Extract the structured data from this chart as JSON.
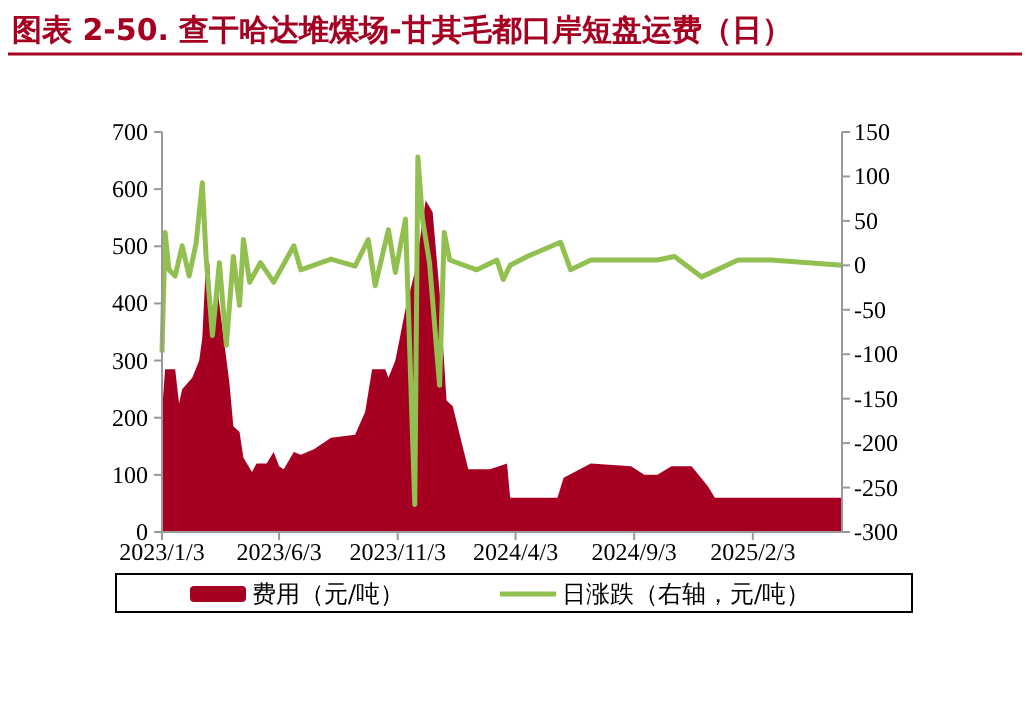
{
  "chart_data": {
    "type": "area",
    "title": "图表 2-50. 查干哈达堆煤场-甘其毛都口岸短盘运费（日）",
    "series": [
      {
        "name": "费用（元/吨）",
        "color": "#a50021",
        "x": [
          "2023-01-03",
          "2023-01-07",
          "2023-01-20",
          "2023-01-25",
          "2023-01-29",
          "2023-02-11",
          "2023-02-20",
          "2023-02-24",
          "2023-03-01",
          "2023-03-05",
          "2023-03-09",
          "2023-03-16",
          "2023-03-23",
          "2023-03-31",
          "2023-04-05",
          "2023-04-13",
          "2023-04-18",
          "2023-04-29",
          "2023-05-05",
          "2023-05-18",
          "2023-05-27",
          "2023-06-03",
          "2023-06-09",
          "2023-06-22",
          "2023-07-01",
          "2023-07-18",
          "2023-08-09",
          "2023-09-09",
          "2023-09-22",
          "2023-10-01",
          "2023-10-18",
          "2023-10-22",
          "2023-10-31",
          "2023-11-13",
          "2023-11-26",
          "2023-12-09",
          "2023-12-18",
          "2023-12-27",
          "2024-01-05",
          "2024-01-13",
          "2024-01-22",
          "2024-02-02",
          "2024-03-01",
          "2024-03-23",
          "2024-03-27",
          "2024-05-27",
          "2024-06-04",
          "2024-07-09",
          "2024-08-30",
          "2024-09-16",
          "2024-10-03",
          "2024-10-21",
          "2024-11-16",
          "2024-12-07",
          "2024-12-16",
          "2025-05-29"
        ],
        "values": [
          210,
          285,
          285,
          225,
          250,
          270,
          300,
          340,
          480,
          470,
          360,
          420,
          345,
          260,
          185,
          175,
          130,
          105,
          120,
          120,
          140,
          115,
          110,
          140,
          135,
          145,
          165,
          170,
          210,
          285,
          285,
          270,
          300,
          390,
          460,
          580,
          560,
          420,
          230,
          220,
          170,
          110,
          110,
          120,
          60,
          60,
          95,
          120,
          115,
          100,
          100,
          115,
          115,
          80,
          60,
          60
        ]
      },
      {
        "name": "日涨跌（右轴，元/吨）",
        "type": "line",
        "axis": "y2",
        "color": "#92c050",
        "x": [
          "2023-01-03",
          "2023-01-07",
          "2023-01-12",
          "2023-01-20",
          "2023-01-29",
          "2023-02-07",
          "2023-02-16",
          "2023-02-24",
          "2023-03-01",
          "2023-03-05",
          "2023-03-09",
          "2023-03-18",
          "2023-03-27",
          "2023-04-05",
          "2023-04-13",
          "2023-04-18",
          "2023-04-26",
          "2023-05-10",
          "2023-05-27",
          "2023-06-22",
          "2023-07-01",
          "2023-08-09",
          "2023-09-09",
          "2023-09-26",
          "2023-10-05",
          "2023-10-22",
          "2023-10-31",
          "2023-11-13",
          "2023-11-25",
          "2023-11-29",
          "2023-12-05",
          "2023-12-14",
          "2023-12-27",
          "2024-01-02",
          "2024-01-09",
          "2024-02-13",
          "2024-03-10",
          "2024-03-18",
          "2024-03-27",
          "2024-04-18",
          "2024-05-31",
          "2024-06-13",
          "2024-07-09",
          "2024-10-03",
          "2024-10-25",
          "2024-11-29",
          "2025-01-15",
          "2025-02-27",
          "2025-05-29"
        ],
        "values": [
          -98,
          37,
          -5,
          -12,
          22,
          -12,
          25,
          93,
          7,
          -35,
          -79,
          3,
          -90,
          10,
          -45,
          29,
          -19,
          3,
          -19,
          22,
          -5,
          7,
          -1,
          29,
          -23,
          40,
          -8,
          52,
          -269,
          122,
          52,
          3,
          -135,
          37,
          6,
          -5,
          6,
          -16,
          0,
          10,
          26,
          -5,
          6,
          6,
          10,
          -13,
          6,
          6,
          0
        ]
      }
    ],
    "xlim": [
      "2023-01-03",
      "2025-05-29"
    ],
    "xticks": [
      {
        "value": "2023-01-03",
        "label": "2023/1/3"
      },
      {
        "value": "2023-06-03",
        "label": "2023/6/3"
      },
      {
        "value": "2023-11-03",
        "label": "2023/11/3"
      },
      {
        "value": "2024-04-03",
        "label": "2024/4/3"
      },
      {
        "value": "2024-09-03",
        "label": "2024/9/3"
      },
      {
        "value": "2025-02-03",
        "label": "2025/2/3"
      }
    ],
    "ylim": [
      0,
      700
    ],
    "yticks": [
      0,
      100,
      200,
      300,
      400,
      500,
      600,
      700
    ],
    "y2lim": [
      -300,
      150
    ],
    "y2ticks": [
      -300,
      -250,
      -200,
      -150,
      -100,
      -50,
      0,
      50,
      100,
      150
    ],
    "legend": "bottom",
    "grid": false
  }
}
